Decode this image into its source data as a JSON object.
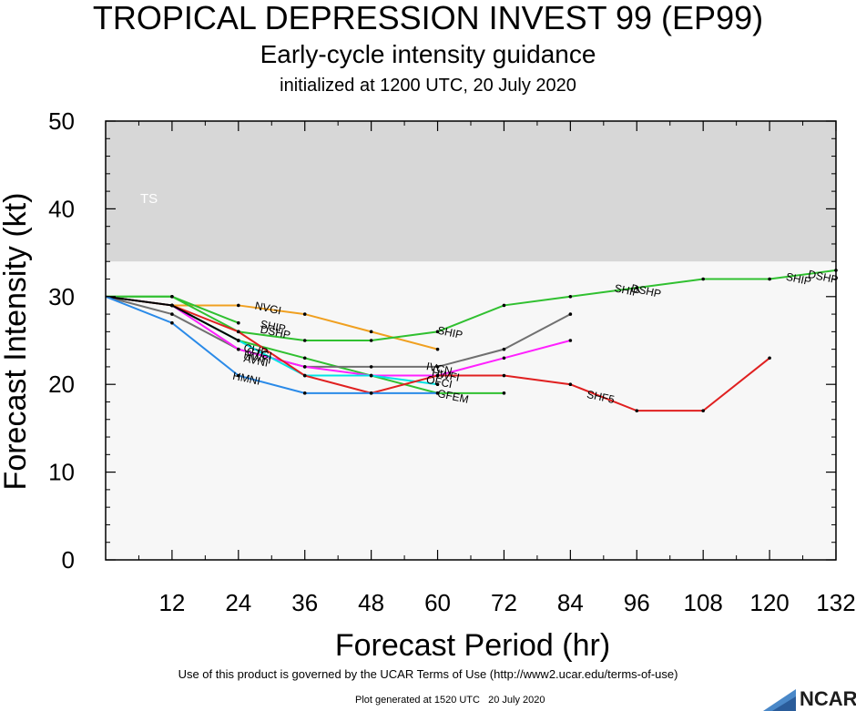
{
  "header": {
    "title": "TROPICAL DEPRESSION INVEST 99 (EP99)",
    "subtitle": "Early-cycle intensity guidance",
    "subtitle2": "initialized at 1200 UTC, 20 July 2020"
  },
  "footer": {
    "terms": "Use of this product is governed by the UCAR Terms of Use (http://www2.ucar.edu/terms-of-use)",
    "generated": "Plot generated at 1520 UTC   20 July 2020",
    "logo_text": "NCAR"
  },
  "chart_data": {
    "type": "line",
    "xlabel": "Forecast Period (hr)",
    "ylabel": "Forecast Intensity (kt)",
    "xlim": [
      0,
      132
    ],
    "ylim": [
      0,
      50
    ],
    "xticks": [
      12,
      24,
      36,
      48,
      60,
      72,
      84,
      96,
      108,
      120,
      132
    ],
    "yticks": [
      0,
      10,
      20,
      30,
      40,
      50
    ],
    "grid": false,
    "bands": [
      {
        "label": "TS",
        "from": 34,
        "to": 50,
        "color": "#d7d7d7"
      }
    ],
    "background_color": "#f7f7f7",
    "series": [
      {
        "name": "NVGI",
        "color": "#f0a020",
        "x": [
          0,
          12,
          24,
          36,
          48,
          60
        ],
        "y": [
          30,
          29,
          29,
          28,
          26,
          24
        ],
        "label_x": 27,
        "label_y": 29
      },
      {
        "name": "DSHP",
        "color": "#30c030",
        "x": [
          0,
          12,
          24,
          36,
          48,
          60,
          72,
          84,
          96,
          108,
          120,
          132
        ],
        "y": [
          30,
          30,
          26,
          25,
          25,
          26,
          29,
          30,
          31,
          32,
          32,
          33
        ],
        "label_x": 28,
        "label_y": 26.3
      },
      {
        "name": "SHIP",
        "color": "#30c030",
        "x": [
          0,
          12,
          24
        ],
        "y": [
          30,
          30,
          27
        ],
        "label_x": 28,
        "label_y": 26.9
      },
      {
        "name": "GFEM",
        "color": "#30c030",
        "x": [
          0,
          12,
          24,
          36,
          48,
          60,
          72
        ],
        "y": [
          30,
          29,
          25,
          23,
          21,
          19,
          19
        ],
        "label_x": 60,
        "label_y": 19
      },
      {
        "name": "IVCN",
        "color": "#707070",
        "x": [
          0,
          12,
          24,
          36,
          48,
          60,
          72,
          84
        ],
        "y": [
          30,
          28,
          24,
          22,
          22,
          22,
          24,
          28
        ],
        "label_x": 58,
        "label_y": 22.1
      },
      {
        "name": "HWFI",
        "color": "#ff20ff",
        "x": [
          0,
          12,
          24,
          36,
          48,
          60,
          72,
          84
        ],
        "y": [
          30,
          29,
          24,
          22,
          21,
          21,
          23,
          25
        ],
        "label_x": 59,
        "label_y": 21.4
      },
      {
        "name": "OFCI",
        "color": "#00e5e5",
        "x": [
          0,
          12,
          24,
          36,
          48,
          60
        ],
        "y": [
          30,
          29,
          25,
          21,
          21,
          20
        ],
        "label_x": 58,
        "label_y": 20.6
      },
      {
        "name": "SHF5",
        "color": "#e02020",
        "x": [
          0,
          12,
          24,
          36,
          48,
          60,
          72,
          84,
          96,
          108,
          120
        ],
        "y": [
          30,
          29,
          26,
          21,
          19,
          21,
          21,
          20,
          17,
          17,
          23
        ],
        "label_x": 87,
        "label_y": 18.9
      },
      {
        "name": "CLIP",
        "color": "#000000",
        "x": [
          0,
          12,
          24
        ],
        "y": [
          30,
          29,
          25
        ],
        "label_x": 25,
        "label_y": 24.2
      },
      {
        "name": "HMNI",
        "color": "#2a8ae8",
        "x": [
          0,
          12,
          24,
          36,
          48,
          60
        ],
        "y": [
          30,
          27,
          21,
          19,
          19,
          19
        ],
        "label_x": 23,
        "label_y": 21
      }
    ],
    "extra_labels": [
      {
        "text": "CTCI",
        "x": 25.5,
        "y": 23.8
      },
      {
        "text": "HWFI",
        "x": 25,
        "y": 23.4
      },
      {
        "text": "AVNI",
        "x": 25,
        "y": 23
      },
      {
        "text": "SHIP",
        "x": 92,
        "y": 31
      },
      {
        "text": "DSHP",
        "x": 95,
        "y": 31
      },
      {
        "text": "SHIP",
        "x": 123,
        "y": 32.3
      },
      {
        "text": "DSHP",
        "x": 127,
        "y": 32.6
      },
      {
        "text": "SHIP",
        "x": 60,
        "y": 26.2
      }
    ]
  }
}
